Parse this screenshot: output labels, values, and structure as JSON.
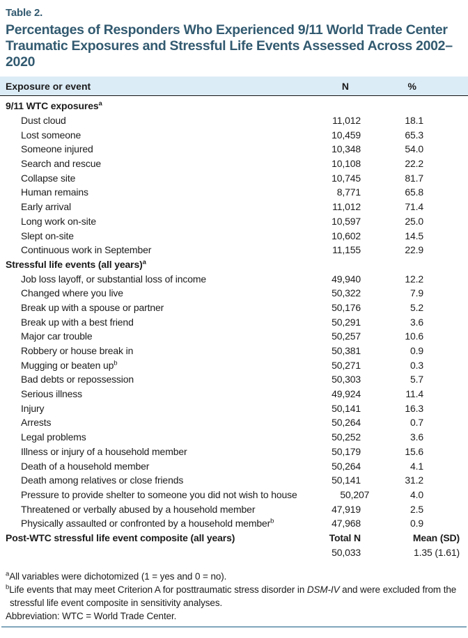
{
  "table_label": "Table 2.",
  "title": "Percentages of Responders Who Experienced 9/11 World Trade Center Traumatic Exposures and Stressful Life Events Assessed Across 2002–2020",
  "columns": {
    "exposure": "Exposure or event",
    "n": "N",
    "pct": "%"
  },
  "rows": [
    {
      "type": "section",
      "label": "9/11 WTC exposures",
      "sup": "a",
      "n": "",
      "pct": ""
    },
    {
      "type": "item",
      "label": "Dust cloud",
      "n": "11,012",
      "pct": "18.1"
    },
    {
      "type": "item",
      "label": "Lost someone",
      "n": "10,459",
      "pct": "65.3"
    },
    {
      "type": "item",
      "label": "Someone injured",
      "n": "10,348",
      "pct": "54.0"
    },
    {
      "type": "item",
      "label": "Search and rescue",
      "n": "10,108",
      "pct": "22.2"
    },
    {
      "type": "item",
      "label": "Collapse site",
      "n": "10,745",
      "pct": "81.7"
    },
    {
      "type": "item",
      "label": "Human remains",
      "n": "8,771",
      "pct": "65.8"
    },
    {
      "type": "item",
      "label": "Early arrival",
      "n": "11,012",
      "pct": "71.4"
    },
    {
      "type": "item",
      "label": "Long work on-site",
      "n": "10,597",
      "pct": "25.0"
    },
    {
      "type": "item",
      "label": "Slept on-site",
      "n": "10,602",
      "pct": "14.5"
    },
    {
      "type": "item",
      "label": "Continuous work in September",
      "n": "11,155",
      "pct": "22.9"
    },
    {
      "type": "section",
      "label": "Stressful life events (all years)",
      "sup": "a",
      "n": "",
      "pct": ""
    },
    {
      "type": "item",
      "label": "Job loss layoff, or substantial loss of income",
      "n": "49,940",
      "pct": "12.2"
    },
    {
      "type": "item",
      "label": "Changed where you live",
      "n": "50,322",
      "pct": "7.9"
    },
    {
      "type": "item",
      "label": "Break up with a spouse or partner",
      "n": "50,176",
      "pct": "5.2"
    },
    {
      "type": "item",
      "label": "Break up with a best friend",
      "n": "50,291",
      "pct": "3.6"
    },
    {
      "type": "item",
      "label": "Major car trouble",
      "n": "50,257",
      "pct": "10.6"
    },
    {
      "type": "item",
      "label": "Robbery or house break in",
      "n": "50,381",
      "pct": "0.9"
    },
    {
      "type": "item",
      "label": "Mugging or beaten up",
      "sup": "b",
      "n": "50,271",
      "pct": "0.3"
    },
    {
      "type": "item",
      "label": "Bad debts or repossession",
      "n": "50,303",
      "pct": "5.7"
    },
    {
      "type": "item",
      "label": "Serious illness",
      "n": "49,924",
      "pct": "11.4"
    },
    {
      "type": "item",
      "label": "Injury",
      "n": "50,141",
      "pct": "16.3"
    },
    {
      "type": "item",
      "label": "Arrests",
      "n": "50,264",
      "pct": "0.7"
    },
    {
      "type": "item",
      "label": "Legal problems",
      "n": "50,252",
      "pct": "3.6"
    },
    {
      "type": "item",
      "label": "Illness or injury of a household member",
      "n": "50,179",
      "pct": "15.6"
    },
    {
      "type": "item",
      "label": "Death of a household member",
      "n": "50,264",
      "pct": "4.1"
    },
    {
      "type": "item",
      "label": "Death among relatives or close friends",
      "n": "50,141",
      "pct": "31.2"
    },
    {
      "type": "item",
      "label": "Pressure to provide shelter to someone you did not wish to house",
      "n": "50,207",
      "pct": "4.0"
    },
    {
      "type": "item",
      "label": "Threatened or verbally abused by a household member",
      "n": "47,919",
      "pct": "2.5"
    },
    {
      "type": "item",
      "label": "Physically assaulted or confronted by a household member",
      "sup": "b",
      "n": "47,968",
      "pct": "0.9"
    },
    {
      "type": "composite",
      "label": "Post-WTC stressful life event composite (all years)",
      "n": "Total N",
      "pct": "Mean (SD)"
    },
    {
      "type": "values",
      "label": "",
      "n": "50,033",
      "pct": "1.35 (1.61)"
    }
  ],
  "footnotes": {
    "a": {
      "marker": "a",
      "text": "All variables were dichotomized (1 = yes and 0 = no)."
    },
    "b": {
      "marker": "b",
      "text_before": "Life events that may meet Criterion A for posttraumatic stress disorder in ",
      "italic": "DSM-IV",
      "text_after": " and were excluded from the stressful life event composite in sensitivity analyses."
    },
    "abbreviation": "Abbreviation: WTC = World Trade Center."
  },
  "colors": {
    "title_teal": "#325a70",
    "header_band_blue": "#dcecf6",
    "header_rule_dark": "#111111",
    "bottom_rule_blue": "#7fa6bb",
    "body_text": "#1b1b1b"
  }
}
